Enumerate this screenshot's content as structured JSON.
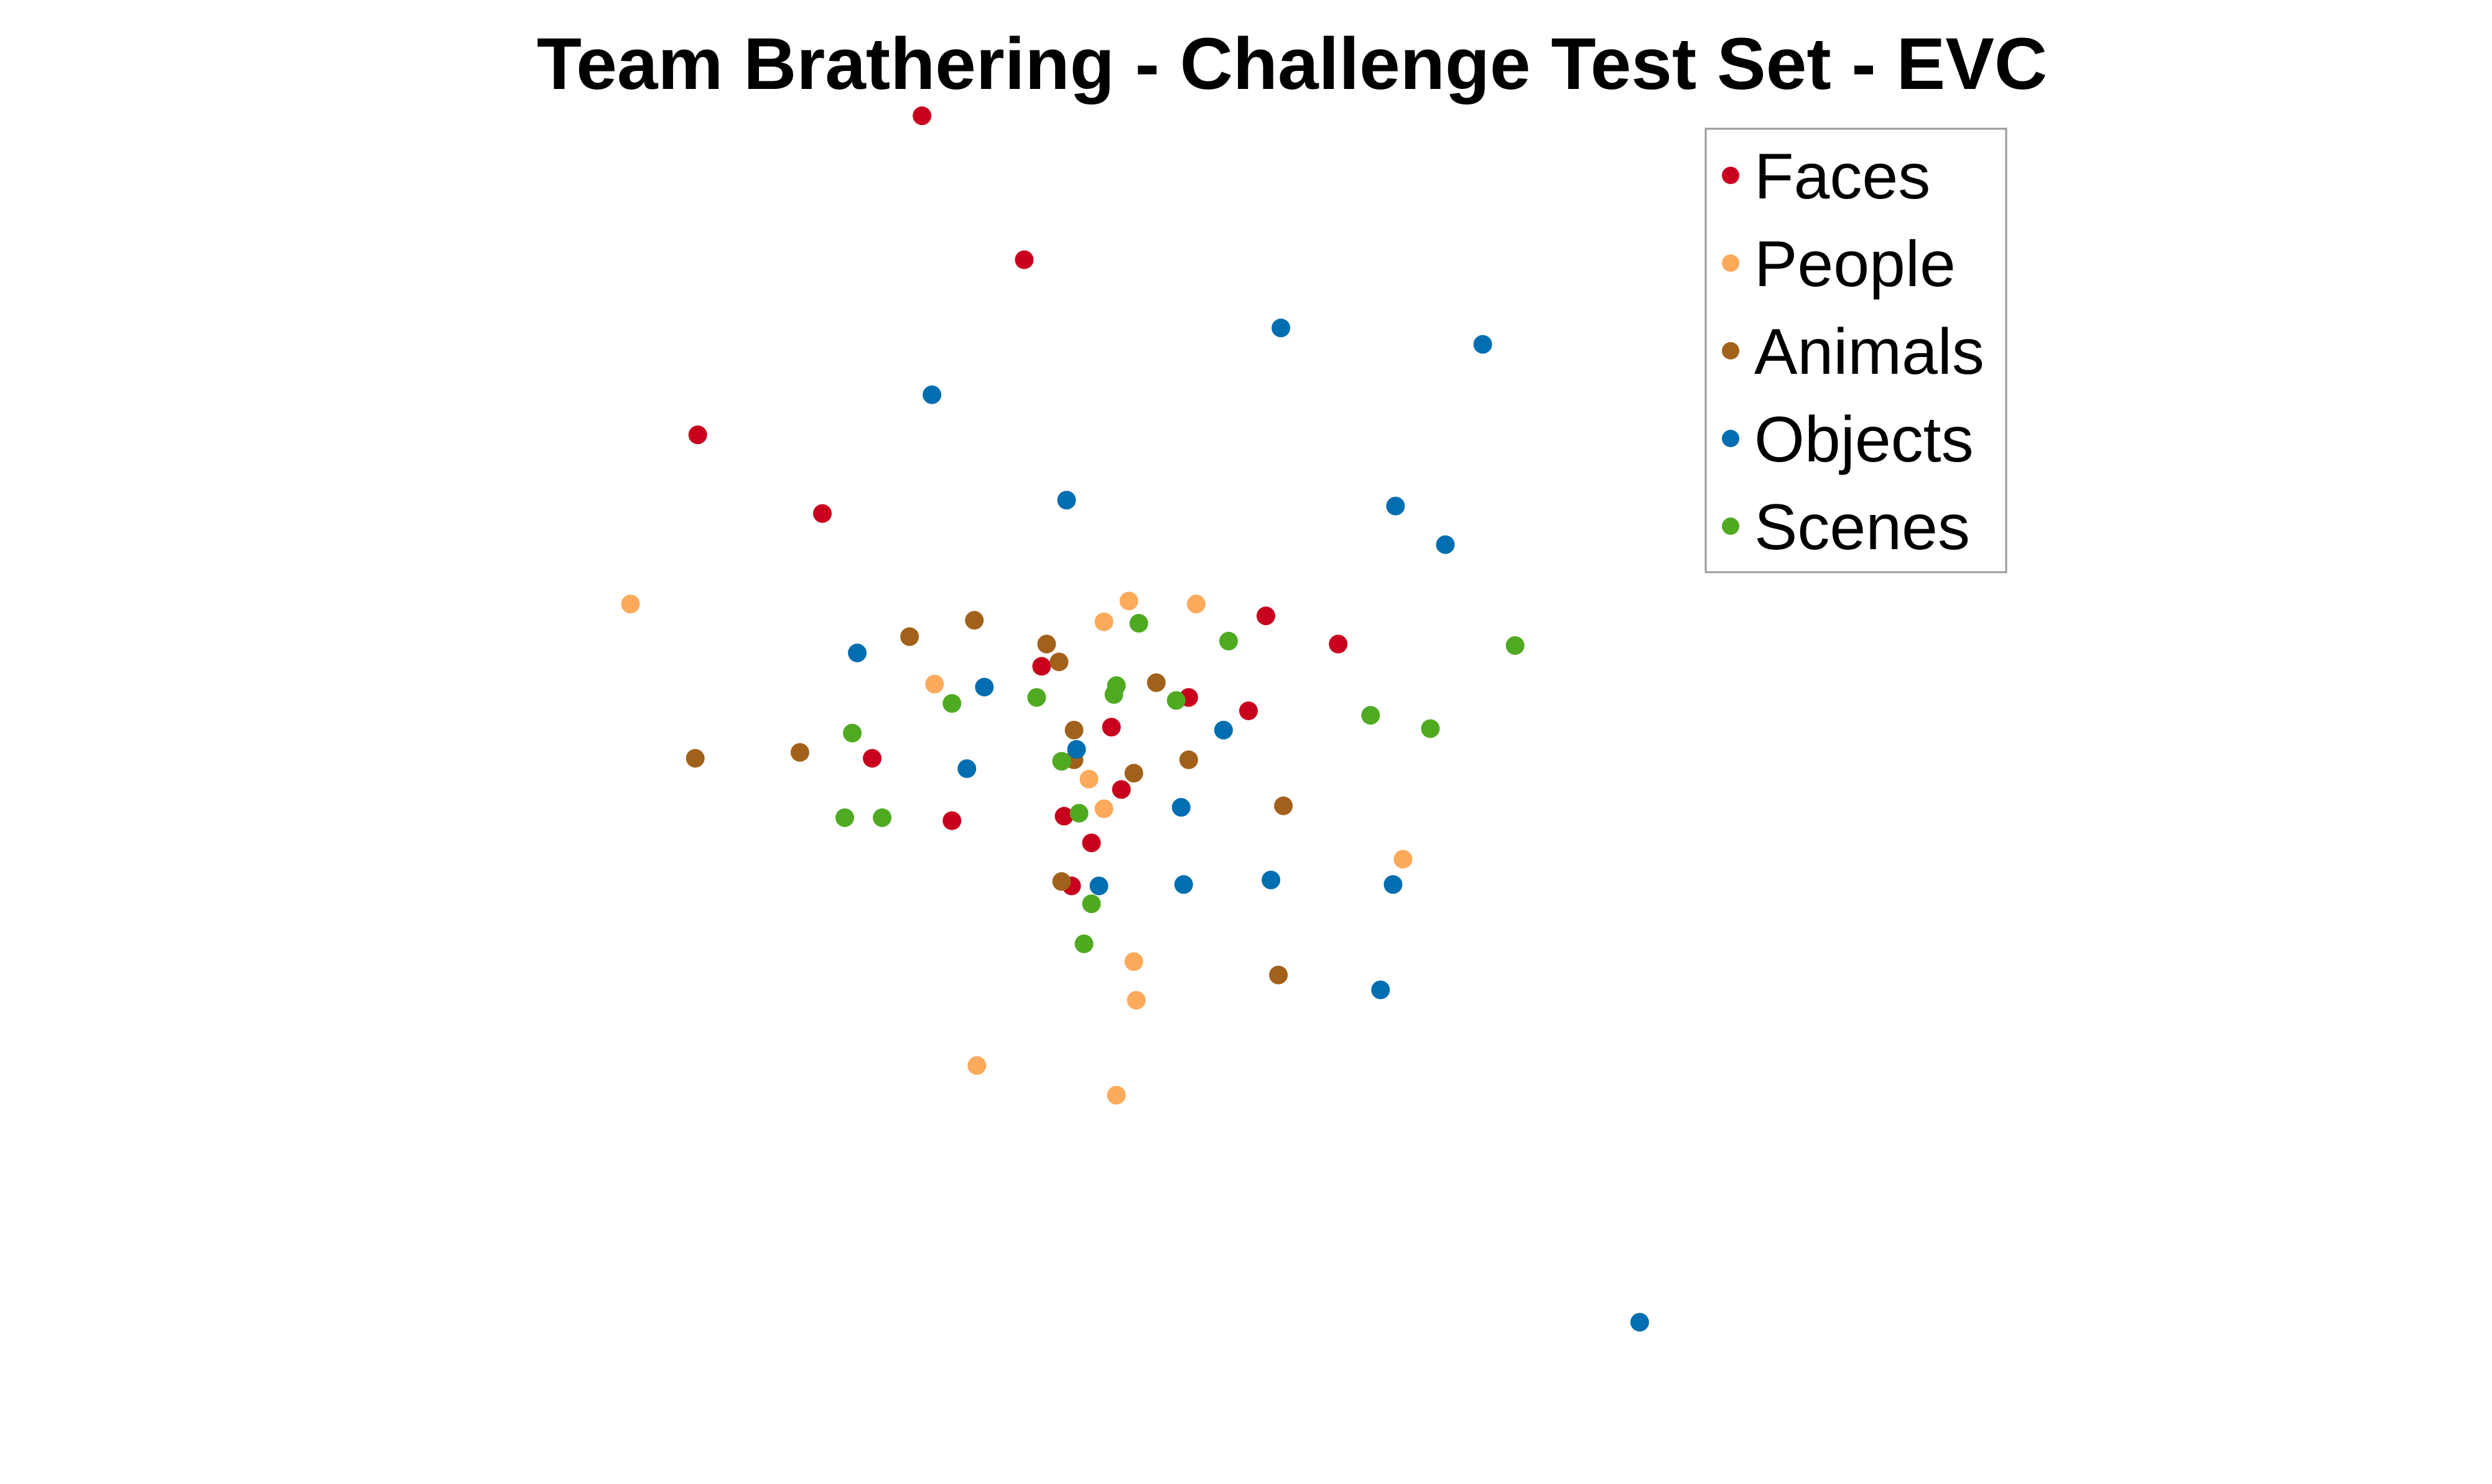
{
  "chart_data": {
    "type": "scatter",
    "title": "Team Brathering  - Challenge Test Set - EVC",
    "xlabel": "",
    "ylabel": "",
    "axes_visible": false,
    "grid": false,
    "legend_position": "top-right",
    "xlim": [
      0,
      100
    ],
    "ylim": [
      0,
      100
    ],
    "series": [
      {
        "name": "Faces",
        "color": "#C8001E",
        "points": [
          [
            37.0,
            92.2
          ],
          [
            41.1,
            82.5
          ],
          [
            28.0,
            70.7
          ],
          [
            33.0,
            65.4
          ],
          [
            50.8,
            58.5
          ],
          [
            53.7,
            56.6
          ],
          [
            47.7,
            53.0
          ],
          [
            50.1,
            52.1
          ],
          [
            41.8,
            55.1
          ],
          [
            44.6,
            51.0
          ],
          [
            35.0,
            48.9
          ],
          [
            45.0,
            46.8
          ],
          [
            42.7,
            45.0
          ],
          [
            43.8,
            43.2
          ],
          [
            38.2,
            44.7
          ],
          [
            43.0,
            40.3
          ]
        ]
      },
      {
        "name": "People",
        "color": "#FDAA5C",
        "points": [
          [
            25.3,
            59.3
          ],
          [
            45.3,
            59.5
          ],
          [
            48.0,
            59.3
          ],
          [
            44.3,
            58.1
          ],
          [
            37.5,
            53.9
          ],
          [
            43.7,
            47.5
          ],
          [
            44.3,
            45.5
          ],
          [
            56.3,
            42.1
          ],
          [
            45.5,
            35.2
          ],
          [
            45.6,
            32.6
          ],
          [
            39.2,
            28.2
          ],
          [
            44.8,
            26.2
          ]
        ]
      },
      {
        "name": "Animals",
        "color": "#A2611A",
        "points": [
          [
            39.1,
            58.2
          ],
          [
            36.5,
            57.1
          ],
          [
            42.0,
            56.6
          ],
          [
            42.5,
            55.4
          ],
          [
            46.4,
            54.0
          ],
          [
            43.1,
            50.8
          ],
          [
            27.9,
            48.9
          ],
          [
            32.1,
            49.3
          ],
          [
            43.1,
            48.8
          ],
          [
            47.7,
            48.8
          ],
          [
            45.5,
            47.9
          ],
          [
            51.5,
            45.7
          ],
          [
            42.6,
            40.6
          ],
          [
            51.3,
            34.3
          ]
        ]
      },
      {
        "name": "Objects",
        "color": "#006EB0",
        "points": [
          [
            51.4,
            77.9
          ],
          [
            59.5,
            76.8
          ],
          [
            37.4,
            73.4
          ],
          [
            42.8,
            66.3
          ],
          [
            56.0,
            65.9
          ],
          [
            58.0,
            63.3
          ],
          [
            34.4,
            56.0
          ],
          [
            39.5,
            53.7
          ],
          [
            49.1,
            50.8
          ],
          [
            43.2,
            49.5
          ],
          [
            38.8,
            48.2
          ],
          [
            47.4,
            45.6
          ],
          [
            44.1,
            40.3
          ],
          [
            47.5,
            40.4
          ],
          [
            51.0,
            40.7
          ],
          [
            55.9,
            40.4
          ],
          [
            55.4,
            33.3
          ],
          [
            65.8,
            10.9
          ]
        ]
      },
      {
        "name": "Scenes",
        "color": "#4FAA22",
        "points": [
          [
            45.7,
            58.0
          ],
          [
            49.3,
            56.8
          ],
          [
            60.8,
            56.5
          ],
          [
            44.8,
            53.8
          ],
          [
            44.7,
            53.2
          ],
          [
            41.6,
            53.0
          ],
          [
            47.2,
            52.8
          ],
          [
            38.2,
            52.6
          ],
          [
            55.0,
            51.8
          ],
          [
            57.4,
            50.9
          ],
          [
            34.2,
            50.6
          ],
          [
            42.6,
            48.7
          ],
          [
            43.3,
            45.2
          ],
          [
            33.9,
            44.9
          ],
          [
            35.4,
            44.9
          ],
          [
            43.8,
            39.1
          ],
          [
            43.5,
            36.4
          ]
        ]
      }
    ]
  }
}
